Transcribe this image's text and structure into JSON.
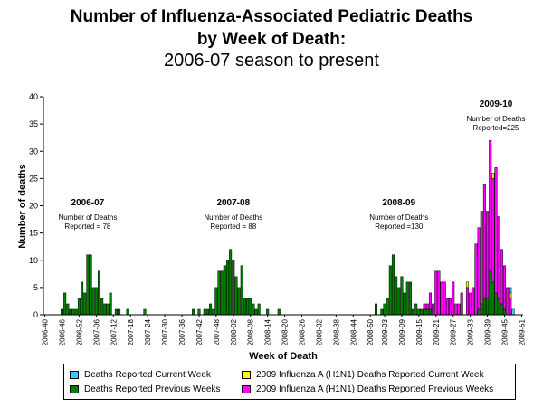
{
  "chart_data": {
    "type": "bar",
    "stacked": true,
    "title": "Number of Influenza-Associated Pediatric Deaths",
    "title_line2": "by Week of Death:",
    "subtitle": "2006-07 season to present",
    "ylabel": "Number of deaths",
    "xlabel": "Week of Death",
    "ylim": [
      0,
      40
    ],
    "yticks": [
      0,
      5,
      10,
      15,
      20,
      25,
      30,
      35,
      40
    ],
    "week_start": "2006-40",
    "week_end": "2009-51",
    "xtick_labels": [
      "2006-40",
      "2006-46",
      "2006-52",
      "2007-06",
      "2007-12",
      "2007-18",
      "2007-24",
      "2007-30",
      "2007-36",
      "2007-42",
      "2007-48",
      "2008-02",
      "2008-08",
      "2008-14",
      "2008-20",
      "2008-26",
      "2008-32",
      "2008-38",
      "2008-44",
      "2008-50",
      "2009-03",
      "2009-09",
      "2009-15",
      "2009-21",
      "2009-27",
      "2009-33",
      "2009-39",
      "2009-45",
      "2009-51"
    ],
    "series": [
      {
        "name": "Deaths Reported Previous Weeks",
        "color": "#008000",
        "points": [
          {
            "x": "2006-46",
            "y": 1
          },
          {
            "x": "2006-47",
            "y": 4
          },
          {
            "x": "2006-48",
            "y": 2
          },
          {
            "x": "2006-49",
            "y": 1
          },
          {
            "x": "2006-50",
            "y": 1
          },
          {
            "x": "2006-51",
            "y": 1
          },
          {
            "x": "2006-52",
            "y": 3
          },
          {
            "x": "2007-01",
            "y": 6
          },
          {
            "x": "2007-02",
            "y": 4
          },
          {
            "x": "2007-03",
            "y": 11
          },
          {
            "x": "2007-04",
            "y": 11
          },
          {
            "x": "2007-05",
            "y": 5
          },
          {
            "x": "2007-06",
            "y": 5
          },
          {
            "x": "2007-07",
            "y": 8
          },
          {
            "x": "2007-08",
            "y": 3
          },
          {
            "x": "2007-09",
            "y": 2
          },
          {
            "x": "2007-10",
            "y": 2
          },
          {
            "x": "2007-11",
            "y": 4
          },
          {
            "x": "2007-13",
            "y": 1
          },
          {
            "x": "2007-14",
            "y": 1
          },
          {
            "x": "2007-17",
            "y": 1
          },
          {
            "x": "2007-23",
            "y": 1
          },
          {
            "x": "2007-40",
            "y": 1
          },
          {
            "x": "2007-42",
            "y": 1
          },
          {
            "x": "2007-44",
            "y": 1
          },
          {
            "x": "2007-45",
            "y": 1
          },
          {
            "x": "2007-46",
            "y": 2
          },
          {
            "x": "2007-47",
            "y": 1
          },
          {
            "x": "2007-48",
            "y": 5
          },
          {
            "x": "2007-49",
            "y": 8
          },
          {
            "x": "2007-50",
            "y": 8
          },
          {
            "x": "2007-51",
            "y": 9
          },
          {
            "x": "2007-52",
            "y": 10
          },
          {
            "x": "2008-01",
            "y": 12
          },
          {
            "x": "2008-02",
            "y": 10
          },
          {
            "x": "2008-03",
            "y": 7
          },
          {
            "x": "2008-04",
            "y": 5
          },
          {
            "x": "2008-05",
            "y": 9
          },
          {
            "x": "2008-06",
            "y": 3
          },
          {
            "x": "2008-07",
            "y": 3
          },
          {
            "x": "2008-08",
            "y": 3
          },
          {
            "x": "2008-09",
            "y": 2
          },
          {
            "x": "2008-10",
            "y": 1
          },
          {
            "x": "2008-11",
            "y": 2
          },
          {
            "x": "2008-14",
            "y": 1
          },
          {
            "x": "2008-18",
            "y": 1
          },
          {
            "x": "2008-52",
            "y": 2
          },
          {
            "x": "2009-02",
            "y": 1
          },
          {
            "x": "2009-03",
            "y": 2
          },
          {
            "x": "2009-04",
            "y": 3
          },
          {
            "x": "2009-05",
            "y": 9
          },
          {
            "x": "2009-06",
            "y": 11
          },
          {
            "x": "2009-07",
            "y": 7
          },
          {
            "x": "2009-08",
            "y": 5
          },
          {
            "x": "2009-09",
            "y": 7
          },
          {
            "x": "2009-10",
            "y": 4
          },
          {
            "x": "2009-11",
            "y": 6
          },
          {
            "x": "2009-12",
            "y": 6
          },
          {
            "x": "2009-13",
            "y": 1
          },
          {
            "x": "2009-14",
            "y": 2
          },
          {
            "x": "2009-15",
            "y": 1
          },
          {
            "x": "2009-16",
            "y": 1
          },
          {
            "x": "2009-17",
            "y": 1
          },
          {
            "x": "2009-18",
            "y": 1
          },
          {
            "x": "2009-19",
            "y": 1
          },
          {
            "x": "2009-36",
            "y": 1
          },
          {
            "x": "2009-37",
            "y": 2
          },
          {
            "x": "2009-38",
            "y": 3
          },
          {
            "x": "2009-39",
            "y": 3
          },
          {
            "x": "2009-40",
            "y": 8
          },
          {
            "x": "2009-41",
            "y": 6
          },
          {
            "x": "2009-42",
            "y": 4
          },
          {
            "x": "2009-43",
            "y": 3
          },
          {
            "x": "2009-44",
            "y": 2
          },
          {
            "x": "2009-45",
            "y": 1
          }
        ]
      },
      {
        "name": "2009 Influenza A (H1N1) Deaths Reported Previous Weeks",
        "color": "#ff00ff",
        "points": [
          {
            "x": "2009-17",
            "y": 1
          },
          {
            "x": "2009-18",
            "y": 1
          },
          {
            "x": "2009-19",
            "y": 3
          },
          {
            "x": "2009-20",
            "y": 2
          },
          {
            "x": "2009-21",
            "y": 8
          },
          {
            "x": "2009-22",
            "y": 8
          },
          {
            "x": "2009-23",
            "y": 6
          },
          {
            "x": "2009-24",
            "y": 6
          },
          {
            "x": "2009-25",
            "y": 3
          },
          {
            "x": "2009-26",
            "y": 3
          },
          {
            "x": "2009-27",
            "y": 6
          },
          {
            "x": "2009-28",
            "y": 2
          },
          {
            "x": "2009-29",
            "y": 2
          },
          {
            "x": "2009-30",
            "y": 4
          },
          {
            "x": "2009-32",
            "y": 5
          },
          {
            "x": "2009-33",
            "y": 4
          },
          {
            "x": "2009-34",
            "y": 5
          },
          {
            "x": "2009-35",
            "y": 13
          },
          {
            "x": "2009-36",
            "y": 15
          },
          {
            "x": "2009-37",
            "y": 17
          },
          {
            "x": "2009-38",
            "y": 21
          },
          {
            "x": "2009-39",
            "y": 16
          },
          {
            "x": "2009-40",
            "y": 24
          },
          {
            "x": "2009-41",
            "y": 19
          },
          {
            "x": "2009-42",
            "y": 23
          },
          {
            "x": "2009-43",
            "y": 15
          },
          {
            "x": "2009-44",
            "y": 10
          },
          {
            "x": "2009-45",
            "y": 8
          },
          {
            "x": "2009-46",
            "y": 5
          },
          {
            "x": "2009-47",
            "y": 3
          }
        ]
      },
      {
        "name": "2009 Influenza A (H1N1) Deaths Reported Current Week",
        "color": "#ffff00",
        "points": [
          {
            "x": "2009-32",
            "y": 1
          },
          {
            "x": "2009-41",
            "y": 1
          },
          {
            "x": "2009-47",
            "y": 1
          }
        ]
      },
      {
        "name": "Deaths Reported Current Week",
        "color": "#33ccff",
        "points": [
          {
            "x": "2009-47",
            "y": 1
          },
          {
            "x": "2009-48",
            "y": 1
          }
        ]
      }
    ],
    "annotations": [
      {
        "season": "2006-07",
        "text1": "Number of Deaths",
        "text2": "Reported = 78",
        "week": "2007-03"
      },
      {
        "season": "2007-08",
        "text1": "Number of Deaths",
        "text2": "Reported = 88",
        "week": "2008-02"
      },
      {
        "season": "2008-09",
        "text1": "Number of Deaths",
        "text2": "Reported =130",
        "week": "2009-08"
      },
      {
        "season": "2009-10",
        "text1": "Number of Deaths",
        "text2": "Reported=225",
        "week": "2009-42"
      }
    ]
  },
  "legend": {
    "current_week": "Deaths Reported Current Week",
    "previous_weeks": "Deaths Reported Previous Weeks",
    "h1n1_current": "2009 Influenza A (H1N1) Deaths Reported Current Week",
    "h1n1_previous": "2009 Influenza A (H1N1) Deaths Reported Previous Weeks",
    "colors": {
      "current": "#33ccff",
      "previous": "#008000",
      "h1n1_current": "#ffff00",
      "h1n1_previous": "#ff00ff"
    }
  }
}
